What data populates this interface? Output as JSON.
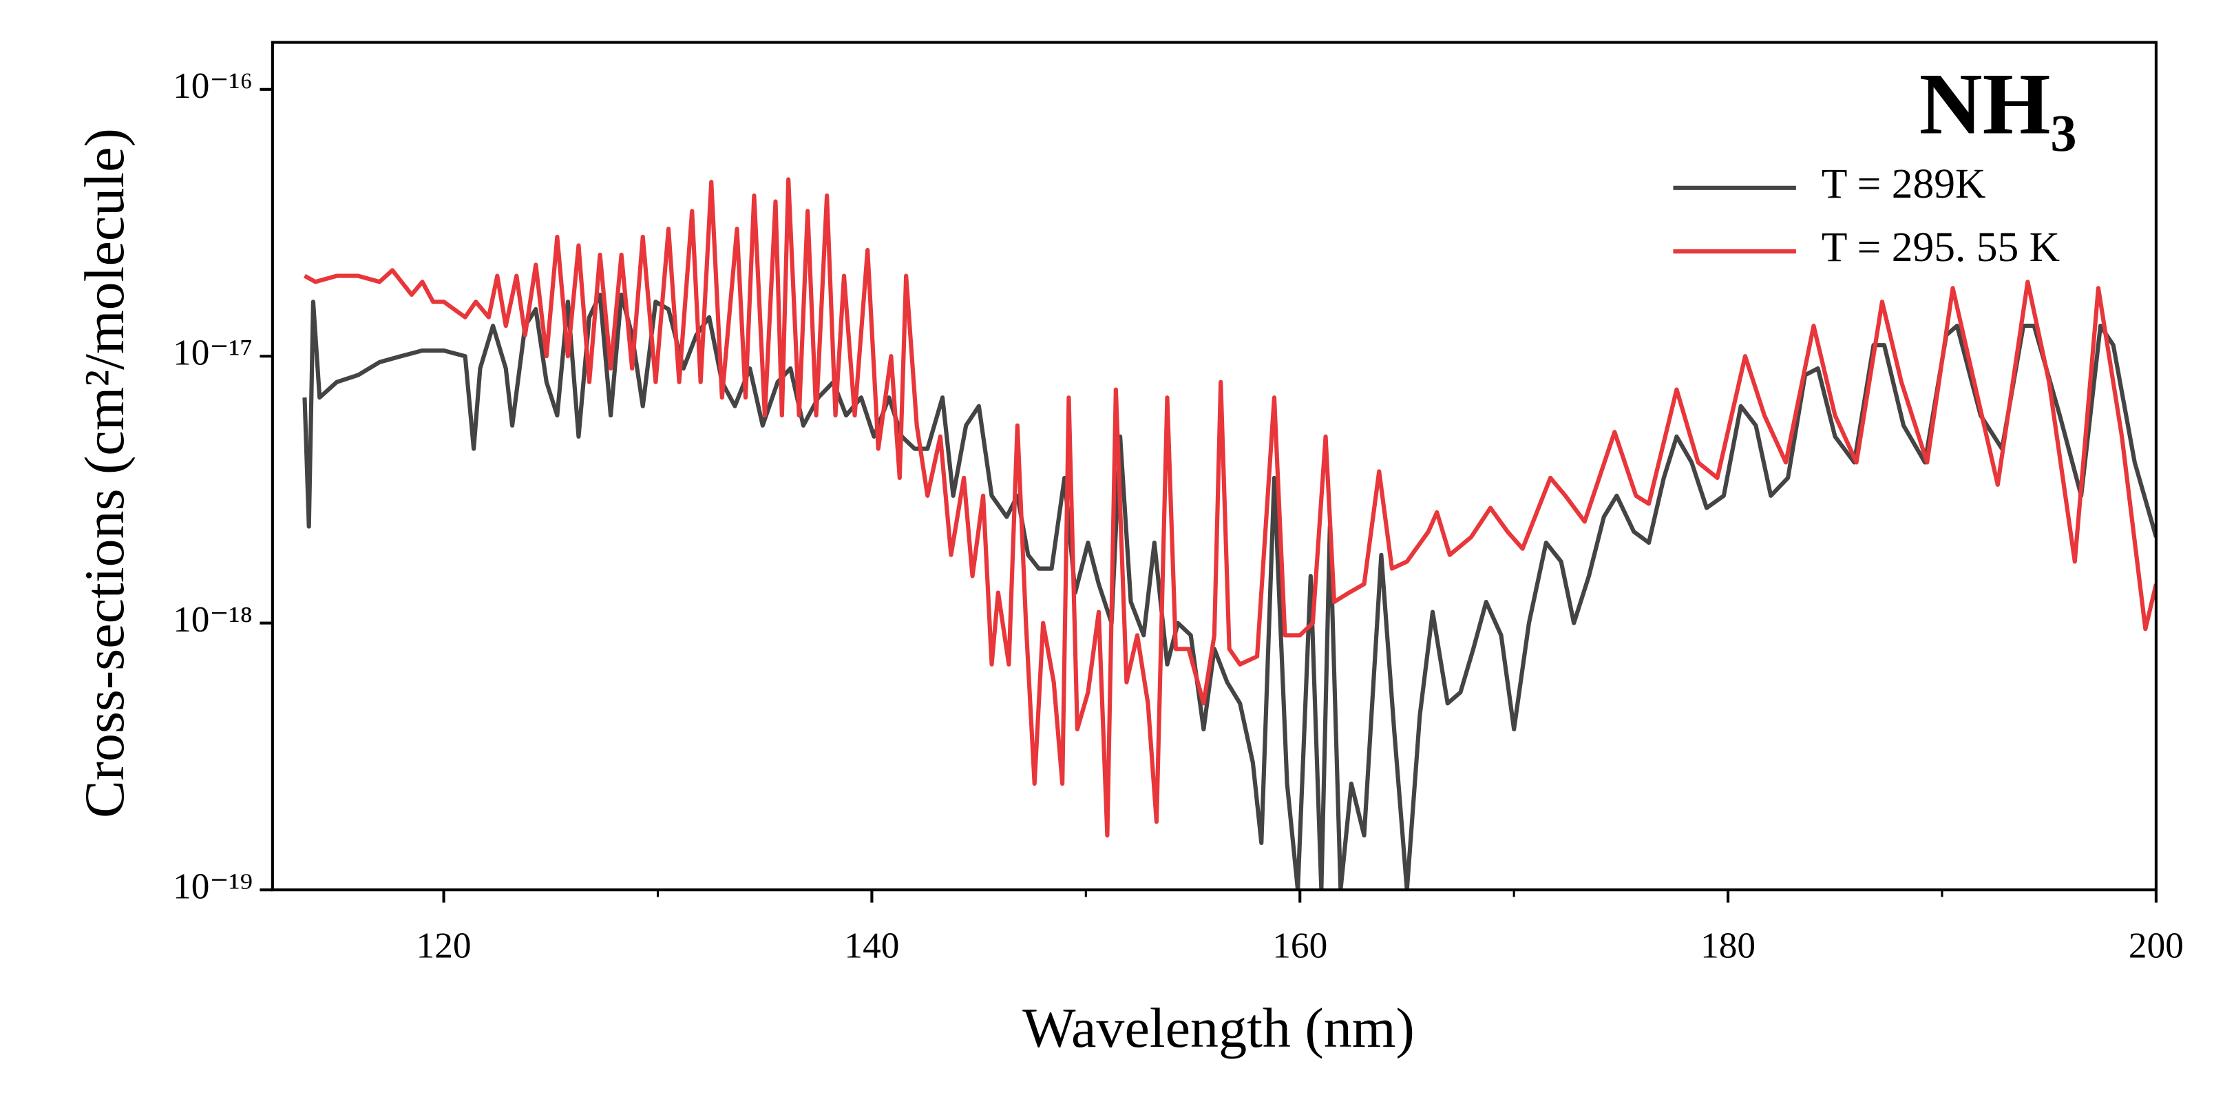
{
  "chart_data": {
    "type": "line",
    "title": "NH₃",
    "xlabel": "Wavelength (nm)",
    "ylabel": "Cross-sections (cm²/molecule)",
    "xlim": [
      112,
      200
    ],
    "ylim": [
      1e-19,
      1.5e-16
    ],
    "yscale": "log",
    "xticks": [
      120,
      140,
      160,
      180,
      200
    ],
    "xticks_minor": [
      130,
      150,
      170,
      190
    ],
    "yticks": [
      {
        "value": 1e-19,
        "label": "10⁻¹⁹"
      },
      {
        "value": 1e-18,
        "label": "10⁻¹⁸"
      },
      {
        "value": 1e-17,
        "label": "10⁻¹⁷"
      },
      {
        "value": 1e-16,
        "label": "10⁻¹⁶"
      }
    ],
    "grid": false,
    "legend": "upper right",
    "series": [
      {
        "name": "T  = 289K",
        "color": "#444444",
        "x": [
          113.5,
          113.7,
          113.9,
          114.2,
          115,
          116,
          117,
          118,
          119,
          120,
          121,
          121.4,
          121.7,
          122.3,
          122.9,
          123.2,
          123.8,
          124.3,
          124.8,
          125.3,
          125.8,
          126.3,
          126.8,
          127.3,
          127.8,
          128.3,
          128.8,
          129.3,
          129.9,
          130.5,
          131.2,
          131.8,
          132.4,
          133,
          133.6,
          134.3,
          134.9,
          135.6,
          136.2,
          136.8,
          137.5,
          138.2,
          138.8,
          139.5,
          140.1,
          140.8,
          141.4,
          142,
          142.6,
          143.3,
          143.8,
          144.4,
          145,
          145.6,
          146.3,
          146.8,
          147.3,
          147.8,
          148.4,
          149,
          149.5,
          150.1,
          150.6,
          151.2,
          151.6,
          152.1,
          152.7,
          153.2,
          153.8,
          154.3,
          154.9,
          155.5,
          156,
          156.6,
          157.2,
          157.8,
          158.2,
          158.8,
          159.4,
          159.9,
          160.5,
          161,
          161.4,
          161.9,
          162.4,
          163,
          163.8,
          164.4,
          165,
          165.6,
          166.2,
          166.9,
          167.5,
          168.1,
          168.7,
          169.4,
          170,
          170.7,
          171.5,
          172.2,
          172.8,
          173.5,
          174.2,
          174.8,
          175.6,
          176.3,
          177,
          177.6,
          178.3,
          179,
          179.8,
          180.6,
          181.3,
          182,
          182.8,
          183.6,
          184.2,
          185,
          185.9,
          186.8,
          187.3,
          188.2,
          189.2,
          190.2,
          190.7,
          191.8,
          192.8,
          193.8,
          194.3,
          195.5,
          196.5,
          197.4,
          198,
          199,
          200
        ],
        "values": [
          7e-18,
          2.3e-18,
          1.6e-17,
          7e-18,
          8e-18,
          8.5e-18,
          9.5e-18,
          1e-17,
          1.05e-17,
          1.05e-17,
          1e-17,
          4.5e-18,
          9e-18,
          1.3e-17,
          9e-18,
          5.5e-18,
          1.3e-17,
          1.5e-17,
          8e-18,
          6e-18,
          1.6e-17,
          5e-18,
          1.4e-17,
          1.7e-17,
          6e-18,
          1.7e-17,
          1.2e-17,
          6.5e-18,
          1.6e-17,
          1.5e-17,
          9e-18,
          1.2e-17,
          1.4e-17,
          8e-18,
          6.5e-18,
          9e-18,
          5.5e-18,
          8e-18,
          9e-18,
          5.5e-18,
          7e-18,
          8e-18,
          6e-18,
          7e-18,
          5e-18,
          7e-18,
          5e-18,
          4.5e-18,
          4.5e-18,
          7e-18,
          3e-18,
          5.5e-18,
          6.5e-18,
          3e-18,
          2.5e-18,
          3e-18,
          1.8e-18,
          1.6e-18,
          1.6e-18,
          3.5e-18,
          1.3e-18,
          2e-18,
          1.4e-18,
          1e-18,
          5e-18,
          1.2e-18,
          9e-19,
          2e-18,
          7e-19,
          1e-18,
          9e-19,
          4e-19,
          8e-19,
          6e-19,
          5e-19,
          3e-19,
          1.5e-19,
          3.5e-18,
          2.5e-19,
          1e-19,
          1.5e-18,
          1e-19,
          2.3e-18,
          1e-19,
          2.5e-19,
          1.6e-19,
          1.8e-18,
          4e-19,
          1e-19,
          4.5e-19,
          1.1e-18,
          5e-19,
          5.5e-19,
          8e-19,
          1.2e-18,
          9e-19,
          4e-19,
          1e-18,
          2e-18,
          1.7e-18,
          1e-18,
          1.5e-18,
          2.5e-18,
          3e-18,
          2.2e-18,
          2e-18,
          3.5e-18,
          5e-18,
          4e-18,
          2.7e-18,
          3e-18,
          6.5e-18,
          5.5e-18,
          3e-18,
          3.5e-18,
          8.5e-18,
          9e-18,
          5e-18,
          4e-18,
          1.1e-17,
          1.1e-17,
          5.5e-18,
          4e-18,
          1.2e-17,
          1.3e-17,
          6e-18,
          4.5e-18,
          1.3e-17,
          1.3e-17,
          6e-18,
          3e-18,
          1.3e-17,
          1.1e-17,
          4e-18,
          2.1e-18
        ]
      },
      {
        "name": "T  = 295. 55 K",
        "color": "#e8363a",
        "x": [
          113.5,
          114,
          115,
          116,
          117,
          117.6,
          118.5,
          119,
          119.5,
          120,
          121,
          121.5,
          122.1,
          122.5,
          122.9,
          123.4,
          123.8,
          124.3,
          124.8,
          125.3,
          125.8,
          126.3,
          126.8,
          127.3,
          127.8,
          128.3,
          128.8,
          129.3,
          129.9,
          130.5,
          131,
          131.6,
          132,
          132.5,
          133,
          133.7,
          134.1,
          134.5,
          135,
          135.5,
          135.8,
          136.1,
          136.6,
          137,
          137.4,
          137.9,
          138.3,
          138.7,
          139.2,
          139.8,
          140.3,
          140.9,
          141.3,
          141.6,
          142.1,
          142.6,
          143.2,
          143.7,
          144.3,
          144.7,
          145.2,
          145.6,
          145.9,
          146.4,
          146.8,
          147.2,
          147.6,
          148,
          148.5,
          148.9,
          149.2,
          149.6,
          150.1,
          150.6,
          151,
          151.4,
          151.9,
          152.4,
          152.9,
          153.3,
          153.8,
          154.2,
          154.8,
          155.5,
          156,
          156.3,
          156.7,
          157.2,
          158,
          158.8,
          159.3,
          160,
          160.6,
          161.2,
          161.6,
          162.3,
          163,
          163.7,
          164.3,
          165,
          166,
          166.4,
          167,
          168,
          168.9,
          169.7,
          170.4,
          171.7,
          172.4,
          173.3,
          174.7,
          175.7,
          176.3,
          177.6,
          178.6,
          179.5,
          180.8,
          181.7,
          182.7,
          184,
          185,
          186,
          187.2,
          188.1,
          189.3,
          190.5,
          191.5,
          192.6,
          194,
          195,
          196.2,
          197.3,
          198.4,
          199.5,
          200
        ],
        "values": [
          2e-17,
          1.9e-17,
          2e-17,
          2e-17,
          1.9e-17,
          2.1e-17,
          1.7e-17,
          1.9e-17,
          1.6e-17,
          1.6e-17,
          1.4e-17,
          1.6e-17,
          1.4e-17,
          2e-17,
          1.3e-17,
          2e-17,
          1.2e-17,
          2.2e-17,
          1e-17,
          2.8e-17,
          1e-17,
          2.6e-17,
          8e-18,
          2.4e-17,
          9e-18,
          2.4e-17,
          9e-18,
          2.8e-17,
          8e-18,
          3e-17,
          8e-18,
          3.5e-17,
          8e-18,
          4.5e-17,
          7e-18,
          3e-17,
          7e-18,
          4e-17,
          6e-18,
          3.8e-17,
          6e-18,
          4.6e-17,
          6e-18,
          3.5e-17,
          6e-18,
          4e-17,
          6e-18,
          2e-17,
          6e-18,
          2.5e-17,
          4.5e-18,
          1e-17,
          3.5e-18,
          2e-17,
          5.5e-18,
          3e-18,
          5e-18,
          1.8e-18,
          3.5e-18,
          1.5e-18,
          3e-18,
          7e-19,
          1.3e-18,
          7e-19,
          5.5e-18,
          1e-18,
          2.5e-19,
          1e-18,
          6e-19,
          2.5e-19,
          7e-18,
          4e-19,
          5.5e-19,
          1.1e-18,
          1.6e-19,
          7.5e-18,
          6e-19,
          9e-19,
          5e-19,
          1.8e-19,
          7e-18,
          8e-19,
          8e-19,
          5e-19,
          9e-19,
          8e-18,
          8e-19,
          7e-19,
          7.5e-19,
          7e-18,
          9e-19,
          9e-19,
          1e-18,
          5e-18,
          1.2e-18,
          1.3e-18,
          1.4e-18,
          3.7e-18,
          1.6e-18,
          1.7e-18,
          2.2e-18,
          2.6e-18,
          1.8e-18,
          2.1e-18,
          2.7e-18,
          2.2e-18,
          1.9e-18,
          3.5e-18,
          3e-18,
          2.4e-18,
          5.2e-18,
          3e-18,
          2.8e-18,
          7.5e-18,
          4e-18,
          3.5e-18,
          1e-17,
          6e-18,
          4e-18,
          1.3e-17,
          6e-18,
          4e-18,
          1.6e-17,
          8e-18,
          4e-18,
          1.8e-17,
          8e-18,
          3.3e-18,
          1.9e-17,
          8e-18,
          1.7e-18,
          1.8e-17,
          5e-18,
          9.5e-19,
          1.4e-18
        ]
      }
    ]
  }
}
